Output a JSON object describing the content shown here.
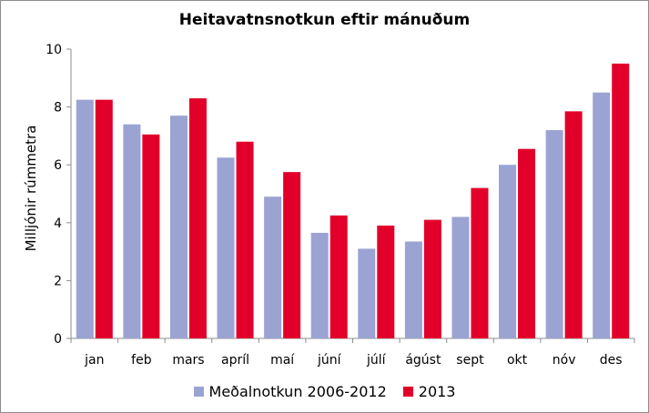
{
  "chart_data": {
    "type": "bar",
    "title": "Heitavatnsnotkun eftir mánuðum",
    "xlabel": "",
    "ylabel": "Milljónir rúmmetra",
    "ylim": [
      0,
      10
    ],
    "yticks": [
      0,
      2,
      4,
      6,
      8,
      10
    ],
    "grid": false,
    "legend_position": "bottom",
    "categories": [
      "jan",
      "feb",
      "mars",
      "apríl",
      "maí",
      "júní",
      "júlí",
      "ágúst",
      "sept",
      "okt",
      "nóv",
      "des"
    ],
    "series": [
      {
        "name": "Meðalnotkun 2006-2012",
        "color": "#9ba3d3",
        "values": [
          8.25,
          7.4,
          7.7,
          6.25,
          4.9,
          3.65,
          3.1,
          3.35,
          4.2,
          6.0,
          7.2,
          8.5
        ]
      },
      {
        "name": "2013",
        "color": "#e2002a",
        "values": [
          8.25,
          7.05,
          8.3,
          6.8,
          5.75,
          4.25,
          3.9,
          4.1,
          5.2,
          6.55,
          7.85,
          9.5
        ]
      }
    ]
  }
}
